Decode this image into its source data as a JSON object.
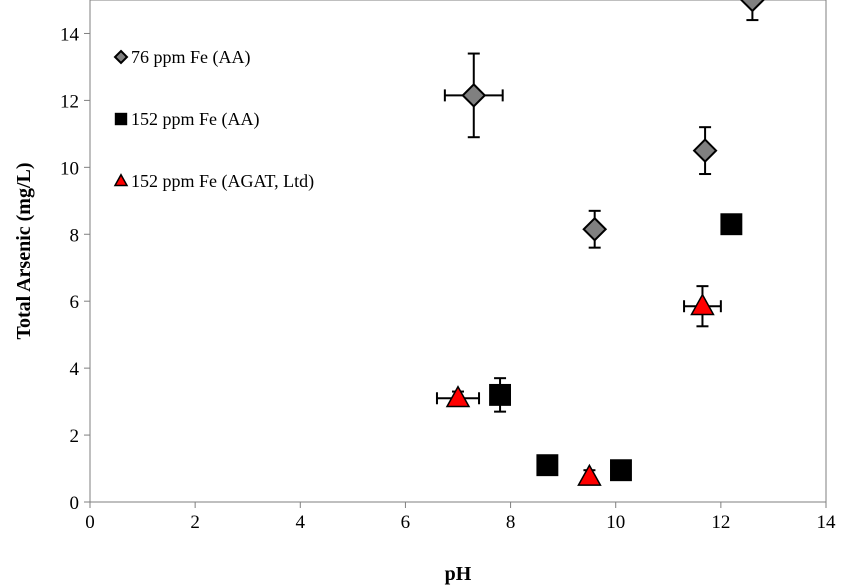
{
  "chart_data": {
    "type": "scatter",
    "xlabel": "pH",
    "ylabel": "Total Arsenic (mg/L)",
    "xlim": [
      0,
      14
    ],
    "ylim": [
      0,
      15
    ],
    "x_ticks": [
      0,
      2,
      4,
      6,
      8,
      10,
      12,
      14
    ],
    "y_ticks": [
      0,
      2,
      4,
      6,
      8,
      10,
      12,
      14
    ],
    "grid": false,
    "legend_position": "top-left",
    "series": [
      {
        "name": "76 ppm Fe (AA)",
        "marker": "diamond",
        "color": "#808080",
        "points": [
          {
            "x": 7.3,
            "y": 12.15,
            "xerr": 0.55,
            "yerr": 1.25
          },
          {
            "x": 9.6,
            "y": 8.15,
            "xerr": 0.0,
            "yerr": 0.55
          },
          {
            "x": 11.7,
            "y": 10.5,
            "xerr": 0.0,
            "yerr": 0.7
          },
          {
            "x": 12.6,
            "y": 15.0,
            "xerr": 0.0,
            "yerr": 0.6
          }
        ]
      },
      {
        "name": "152 ppm Fe (AA)",
        "marker": "square",
        "color": "#000000",
        "points": [
          {
            "x": 7.8,
            "y": 3.2,
            "xerr": 0.0,
            "yerr": 0.5
          },
          {
            "x": 8.7,
            "y": 1.1,
            "xerr": 0.0,
            "yerr": 0.0
          },
          {
            "x": 10.1,
            "y": 0.95,
            "xerr": 0.0,
            "yerr": 0.0
          },
          {
            "x": 12.2,
            "y": 8.3,
            "xerr": 0.0,
            "yerr": 0.0
          }
        ]
      },
      {
        "name": "152 ppm Fe (AGAT, Ltd)",
        "marker": "triangle",
        "color": "#ff0000",
        "points": [
          {
            "x": 7.0,
            "y": 3.1,
            "xerr": 0.4,
            "yerr": 0.2
          },
          {
            "x": 9.5,
            "y": 0.75,
            "xerr": 0.0,
            "yerr": 0.2
          },
          {
            "x": 11.65,
            "y": 5.85,
            "xerr": 0.35,
            "yerr": 0.6
          }
        ]
      }
    ]
  }
}
